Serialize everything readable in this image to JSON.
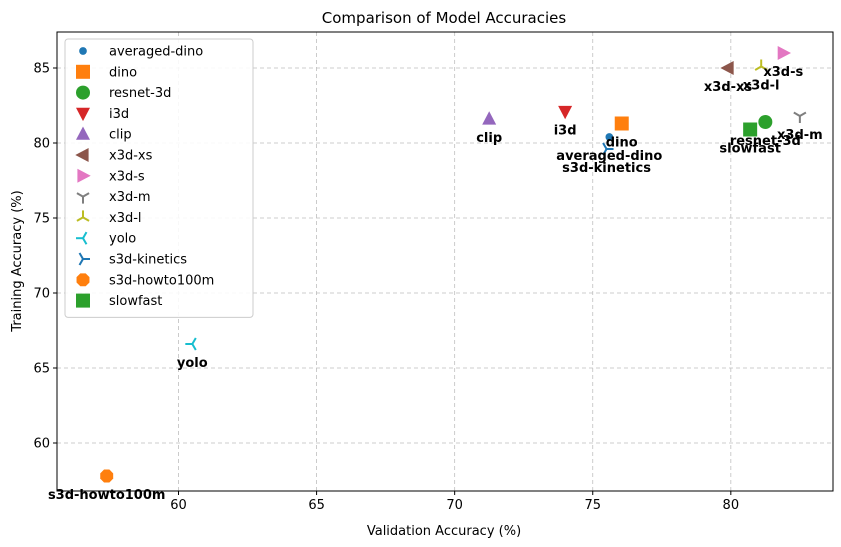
{
  "chart_data": {
    "type": "scatter",
    "title": "Comparison of Model Accuracies",
    "xlabel": "Validation Accuracy (%)",
    "ylabel": "Training Accuracy (%)",
    "xlim": [
      55.6,
      83.7
    ],
    "ylim": [
      56.8,
      87.4
    ],
    "xticks": [
      60,
      65,
      70,
      75,
      80
    ],
    "yticks": [
      60,
      65,
      70,
      75,
      80,
      85
    ],
    "grid": true,
    "legend_position": "upper-left",
    "series": [
      {
        "name": "averaged-dino",
        "x": 75.6,
        "y": 80.4,
        "marker": "circle-small",
        "color": "#1f77b4",
        "annotation": "averaged-dino"
      },
      {
        "name": "dino",
        "x": 76.05,
        "y": 81.3,
        "marker": "square",
        "color": "#ff7f0e",
        "annotation": "dino"
      },
      {
        "name": "resnet-3d",
        "x": 81.25,
        "y": 81.4,
        "marker": "circle",
        "color": "#2ca02c",
        "annotation": "resnet-3d"
      },
      {
        "name": "i3d",
        "x": 74.0,
        "y": 82.1,
        "marker": "triangle-down",
        "color": "#d62728",
        "annotation": "i3d"
      },
      {
        "name": "clip",
        "x": 71.25,
        "y": 81.6,
        "marker": "triangle-up",
        "color": "#9467bd",
        "annotation": "clip"
      },
      {
        "name": "x3d-xs",
        "x": 79.9,
        "y": 85.0,
        "marker": "triangle-left",
        "color": "#8c564b",
        "annotation": "x3d-xs"
      },
      {
        "name": "x3d-s",
        "x": 81.9,
        "y": 86.0,
        "marker": "triangle-right",
        "color": "#e377c2",
        "annotation": "x3d-s"
      },
      {
        "name": "x3d-m",
        "x": 82.5,
        "y": 81.8,
        "marker": "tri-down",
        "color": "#7f7f7f",
        "annotation": "x3d-m"
      },
      {
        "name": "x3d-l",
        "x": 81.1,
        "y": 85.1,
        "marker": "tri-up",
        "color": "#bcbd22",
        "annotation": "x3d-l"
      },
      {
        "name": "yolo",
        "x": 60.5,
        "y": 66.6,
        "marker": "tri-left",
        "color": "#17becf",
        "annotation": "yolo"
      },
      {
        "name": "s3d-kinetics",
        "x": 75.5,
        "y": 79.6,
        "marker": "tri-right",
        "color": "#1f77b4",
        "annotation": "s3d-kinetics"
      },
      {
        "name": "s3d-howto100m",
        "x": 57.4,
        "y": 57.8,
        "marker": "octagon",
        "color": "#ff7f0e",
        "annotation": "s3d-howto100m"
      },
      {
        "name": "slowfast",
        "x": 80.7,
        "y": 80.9,
        "marker": "square",
        "color": "#2ca02c",
        "annotation": "slowfast"
      }
    ]
  }
}
